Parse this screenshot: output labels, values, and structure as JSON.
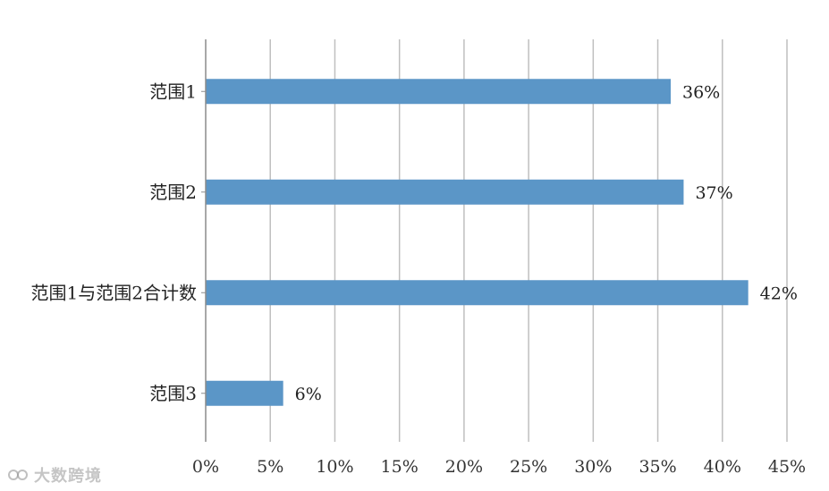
{
  "chart_data": {
    "type": "bar",
    "orientation": "horizontal",
    "categories": [
      "范围1",
      "范围2",
      "范围1与范围2合计数",
      "范围3"
    ],
    "values": [
      36,
      37,
      42,
      6
    ],
    "data_labels": [
      "36%",
      "37%",
      "42%",
      "6%"
    ],
    "xlim": [
      0,
      45
    ],
    "xticks": [
      0,
      5,
      10,
      15,
      20,
      25,
      30,
      35,
      40,
      45
    ],
    "xtick_labels": [
      "0%",
      "5%",
      "10%",
      "15%",
      "20%",
      "25%",
      "30%",
      "35%",
      "40%",
      "45%"
    ],
    "grid": "vertical",
    "bar_color": "#5b96c7",
    "grid_color": "#bfbfbf",
    "axis_color": "#8c8c8c"
  },
  "watermark": {
    "text": "大数跨境"
  }
}
